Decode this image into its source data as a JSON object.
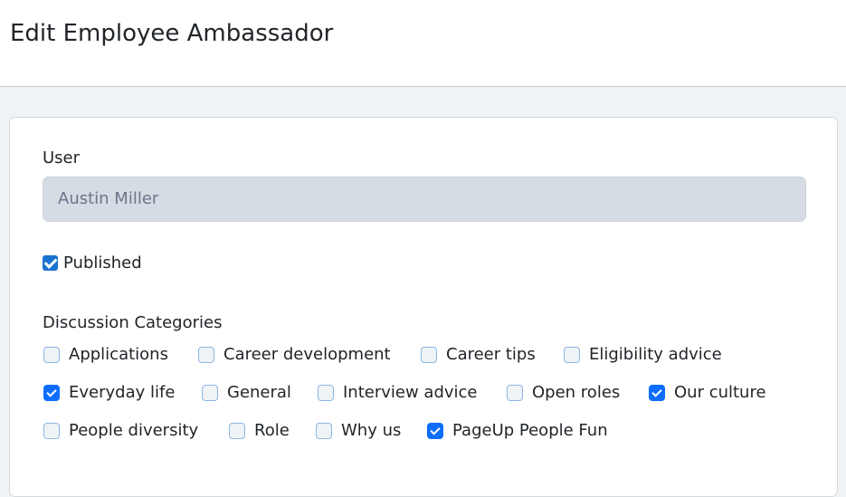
{
  "header": {
    "title": "Edit Employee Ambassador"
  },
  "form": {
    "user_label": "User",
    "user_value": "Austin Miller",
    "published_label": "Published",
    "published_checked": true,
    "categories_label": "Discussion Categories",
    "categories": [
      {
        "label": "Applications",
        "checked": false
      },
      {
        "label": "Career development",
        "checked": false
      },
      {
        "label": "Career tips",
        "checked": false
      },
      {
        "label": "Eligibility advice",
        "checked": false
      },
      {
        "label": "Everyday life",
        "checked": true
      },
      {
        "label": "General",
        "checked": false
      },
      {
        "label": "Interview advice",
        "checked": false
      },
      {
        "label": "Open roles",
        "checked": false
      },
      {
        "label": "Our culture",
        "checked": true
      },
      {
        "label": "People diversity",
        "checked": false
      },
      {
        "label": "Role",
        "checked": false
      },
      {
        "label": "Why us",
        "checked": false
      },
      {
        "label": "PageUp People Fun",
        "checked": true
      }
    ]
  },
  "colors": {
    "accent": "#0d6efd",
    "input_bg": "#d6dce4",
    "page_bg": "#eff3f6"
  }
}
